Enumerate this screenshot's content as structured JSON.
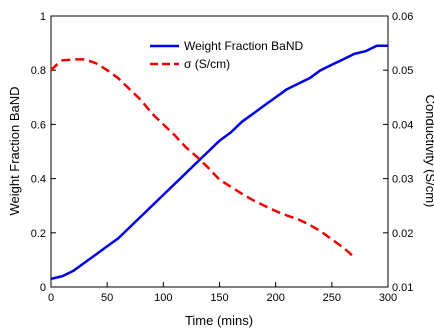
{
  "chart_data": {
    "type": "line",
    "xlabel": "Time (mins)",
    "ylabel_left": "Weight Fraction BaND",
    "ylabel_right": "Conductivity (S/cm)",
    "xlim": [
      0,
      300
    ],
    "ylim_left": [
      0,
      1
    ],
    "ylim_right": [
      0.01,
      0.06
    ],
    "x_ticks": [
      0,
      50,
      100,
      150,
      200,
      250,
      300
    ],
    "x_tick_labels": [
      "0",
      "50",
      "100",
      "150",
      "200",
      "250",
      "300"
    ],
    "y_left_ticks": [
      0,
      0.2,
      0.4,
      0.6,
      0.8,
      1
    ],
    "y_left_tick_labels": [
      "0",
      "0.2",
      "0.4",
      "0.6",
      "0.8",
      "1"
    ],
    "y_right_ticks": [
      0.01,
      0.02,
      0.03,
      0.04,
      0.05,
      0.06
    ],
    "y_right_tick_labels": [
      "0.01",
      "0.02",
      "0.03",
      "0.04",
      "0.05",
      "0.06"
    ],
    "grid": false,
    "legend_position": "top-center",
    "series": [
      {
        "name": "Weight Fraction BaND",
        "axis": "left",
        "color": "#0000ee",
        "style": "solid",
        "x": [
          0,
          10,
          20,
          30,
          40,
          50,
          60,
          70,
          80,
          90,
          100,
          110,
          120,
          130,
          140,
          150,
          160,
          170,
          180,
          190,
          200,
          210,
          220,
          230,
          240,
          250,
          260,
          270,
          280,
          290,
          300
        ],
        "y": [
          0.03,
          0.04,
          0.06,
          0.09,
          0.12,
          0.15,
          0.18,
          0.22,
          0.26,
          0.3,
          0.34,
          0.38,
          0.42,
          0.46,
          0.5,
          0.54,
          0.57,
          0.61,
          0.64,
          0.67,
          0.7,
          0.73,
          0.75,
          0.77,
          0.8,
          0.82,
          0.84,
          0.86,
          0.87,
          0.89,
          0.89
        ]
      },
      {
        "name": "σ (S/cm)",
        "axis": "right",
        "color": "#ee0000",
        "style": "dashed",
        "x": [
          0,
          5,
          10,
          20,
          30,
          40,
          50,
          60,
          70,
          80,
          90,
          100,
          110,
          120,
          130,
          140,
          150,
          160,
          170,
          180,
          190,
          200,
          210,
          220,
          230,
          240,
          250,
          260,
          270
        ],
        "y": [
          0.05,
          0.051,
          0.0518,
          0.052,
          0.052,
          0.0513,
          0.05,
          0.0485,
          0.0465,
          0.0445,
          0.042,
          0.04,
          0.038,
          0.0358,
          0.034,
          0.032,
          0.0298,
          0.0285,
          0.0272,
          0.026,
          0.025,
          0.024,
          0.0232,
          0.0225,
          0.0215,
          0.0203,
          0.0188,
          0.0173,
          0.0155
        ]
      }
    ]
  }
}
